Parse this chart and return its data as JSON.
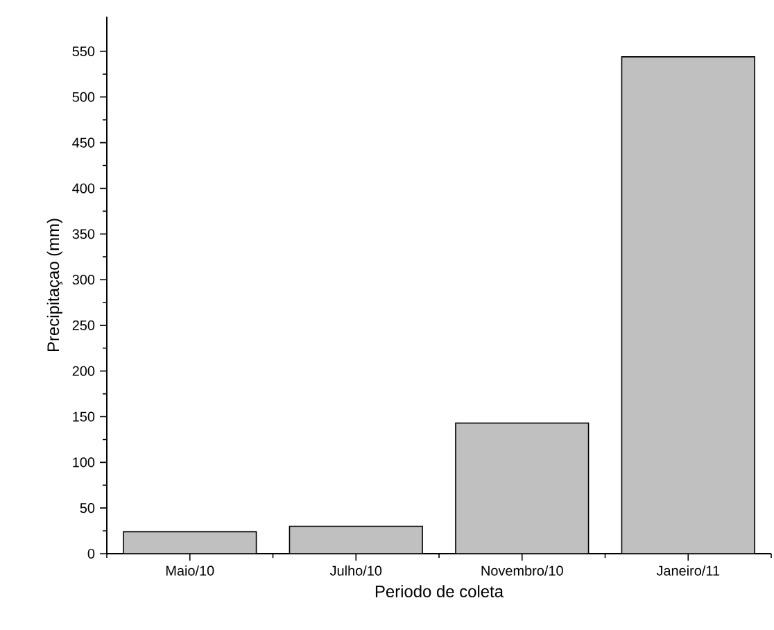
{
  "chart_data": {
    "type": "bar",
    "xlabel": "Periodo de coleta",
    "ylabel": "Precipitaçao (mm)",
    "categories": [
      "Maio/10",
      "Julho/10",
      "Novembro/10",
      "Janeiro/11"
    ],
    "values": [
      24,
      30,
      143,
      544
    ],
    "color": "#c0c0c0",
    "ylim": [
      0,
      588
    ],
    "yticks": [
      0,
      50,
      100,
      150,
      200,
      250,
      300,
      350,
      400,
      450,
      500,
      550
    ],
    "grid": false
  }
}
